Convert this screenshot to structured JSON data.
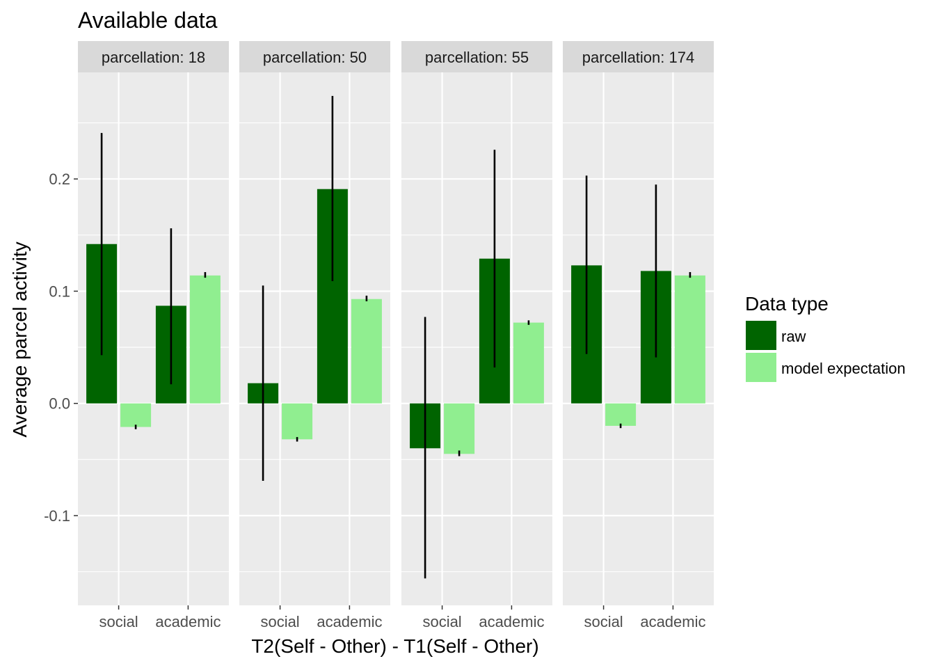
{
  "chart_data": {
    "type": "bar",
    "title": "Available data",
    "xlabel": "T2(Self - Other) - T1(Self - Other)",
    "ylabel": "Average parcel activity",
    "ylim": [
      -0.18,
      0.295
    ],
    "yticks": [
      -0.1,
      0.0,
      0.1,
      0.2
    ],
    "ytick_labels": [
      "-0.1",
      "0.0",
      "0.1",
      "0.2"
    ],
    "categories": [
      "social",
      "academic"
    ],
    "grid": true,
    "legend": {
      "title": "Data type",
      "placement": "right",
      "entries": [
        {
          "label": "raw",
          "color": "#006400"
        },
        {
          "label": "model expectation",
          "color": "#90EE90"
        }
      ]
    },
    "panels": [
      {
        "strip": "parcellation: 18",
        "series": [
          {
            "name": "raw",
            "values": [
              0.142,
              0.087
            ],
            "err_low": [
              0.043,
              0.017
            ],
            "err_high": [
              0.241,
              0.156
            ]
          },
          {
            "name": "model expectation",
            "values": [
              -0.021,
              0.114
            ],
            "err_low": [
              -0.023,
              0.112
            ],
            "err_high": [
              -0.019,
              0.117
            ]
          }
        ]
      },
      {
        "strip": "parcellation: 50",
        "series": [
          {
            "name": "raw",
            "values": [
              0.018,
              0.191
            ],
            "err_low": [
              -0.069,
              0.109
            ],
            "err_high": [
              0.105,
              0.274
            ]
          },
          {
            "name": "model expectation",
            "values": [
              -0.032,
              0.093
            ],
            "err_low": [
              -0.034,
              0.091
            ],
            "err_high": [
              -0.03,
              0.096
            ]
          }
        ]
      },
      {
        "strip": "parcellation: 55",
        "series": [
          {
            "name": "raw",
            "values": [
              -0.04,
              0.129
            ],
            "err_low": [
              -0.156,
              0.032
            ],
            "err_high": [
              0.077,
              0.226
            ]
          },
          {
            "name": "model expectation",
            "values": [
              -0.045,
              0.072
            ],
            "err_low": [
              -0.047,
              0.07
            ],
            "err_high": [
              -0.042,
              0.074
            ]
          }
        ]
      },
      {
        "strip": "parcellation: 174",
        "series": [
          {
            "name": "raw",
            "values": [
              0.123,
              0.118
            ],
            "err_low": [
              0.044,
              0.041
            ],
            "err_high": [
              0.203,
              0.195
            ]
          },
          {
            "name": "model expectation",
            "values": [
              -0.02,
              0.114
            ],
            "err_low": [
              -0.022,
              0.112
            ],
            "err_high": [
              -0.018,
              0.117
            ]
          }
        ]
      }
    ]
  }
}
